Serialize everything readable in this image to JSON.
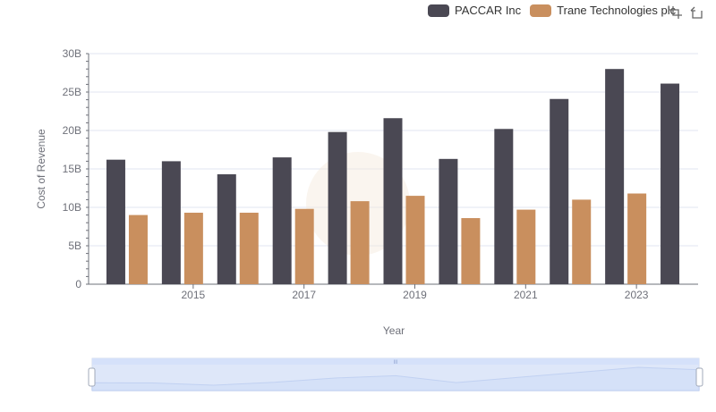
{
  "chart_data": {
    "type": "bar",
    "categories": [
      "2014",
      "2015",
      "2016",
      "2017",
      "2018",
      "2019",
      "2020",
      "2021",
      "2022",
      "2023",
      "2024"
    ],
    "x_tick_labels": [
      "2015",
      "2017",
      "2019",
      "2021",
      "2023"
    ],
    "series": [
      {
        "name": "PACCAR Inc",
        "color": "#4a4853",
        "values": [
          16.2,
          16.0,
          14.3,
          16.5,
          19.8,
          21.6,
          16.3,
          20.2,
          24.1,
          28.0,
          26.1
        ]
      },
      {
        "name": "Trane Technologies plc",
        "color": "#c98f5e",
        "values": [
          9.0,
          9.3,
          9.3,
          9.8,
          10.8,
          11.5,
          8.6,
          9.7,
          11.0,
          11.8,
          null
        ]
      }
    ],
    "ylim": [
      0,
      30
    ],
    "y_ticks": [
      "0",
      "5B",
      "10B",
      "15B",
      "20B",
      "25B",
      "30B"
    ],
    "xlabel": "Year",
    "ylabel": "Cost of Revenue",
    "legend_position": "top-right",
    "grid": true
  },
  "toolbox": {
    "zoom_icon": "zoom-icon",
    "restore_icon": "restore-icon"
  },
  "datazoom": {
    "handle_label": "III",
    "range": [
      0,
      100
    ]
  }
}
